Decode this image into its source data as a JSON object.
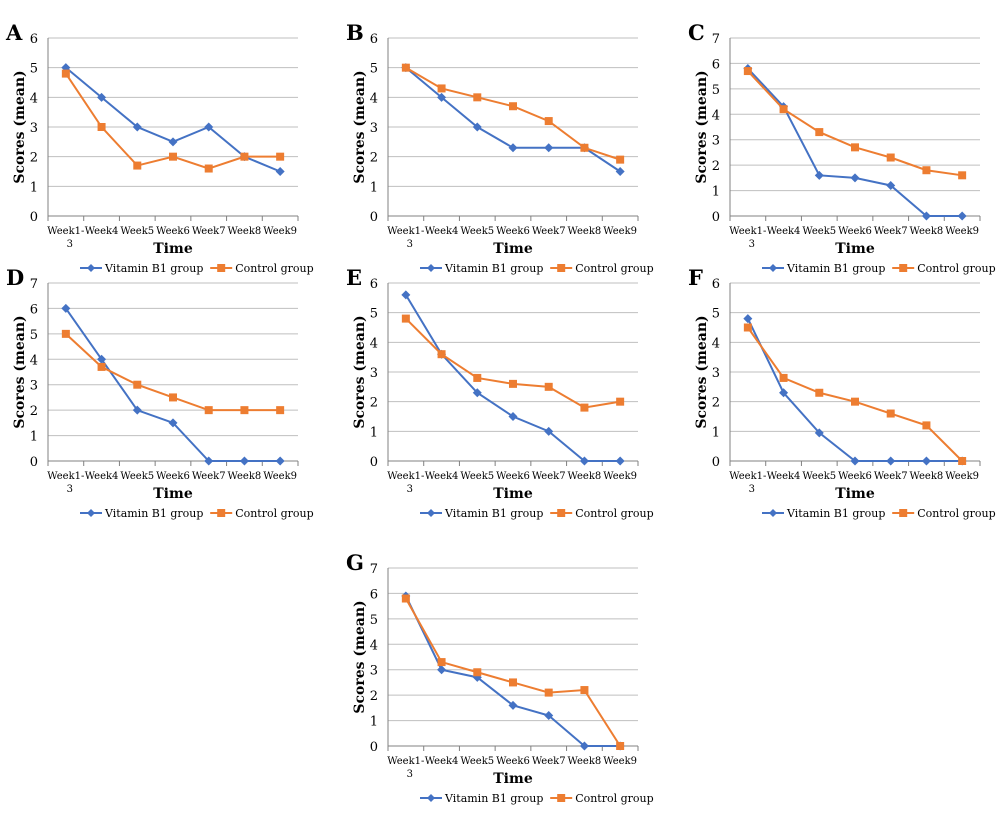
{
  "colors": {
    "vitamin": "#4472C4",
    "control": "#ED7D31",
    "grid": "#BFBFBF",
    "axis": "#808080"
  },
  "chart_data": [
    {
      "panel": "A",
      "type": "line",
      "categories": [
        "Week1-3",
        "Week4",
        "Week5",
        "Week6",
        "Week7",
        "Week8",
        "Week9"
      ],
      "xlabel": "Time",
      "ylabel": "Scores (mean)",
      "ylim": [
        0,
        6
      ],
      "yticks": [
        0,
        1,
        2,
        3,
        4,
        5,
        6
      ],
      "grid": true,
      "legend": "bottom",
      "series": [
        {
          "name": "Vitamin B1 group",
          "values": [
            5,
            4,
            3,
            2.5,
            3,
            2,
            1.5
          ]
        },
        {
          "name": "Control group",
          "values": [
            4.8,
            3,
            1.7,
            2,
            1.6,
            2,
            2
          ]
        }
      ]
    },
    {
      "panel": "B",
      "type": "line",
      "categories": [
        "Week1-3",
        "Week4",
        "Week5",
        "Week6",
        "Week7",
        "Week8",
        "Week9"
      ],
      "xlabel": "Time",
      "ylabel": "Scores (mean)",
      "ylim": [
        0,
        6
      ],
      "yticks": [
        0,
        1,
        2,
        3,
        4,
        5,
        6
      ],
      "grid": true,
      "legend": "bottom",
      "series": [
        {
          "name": "Vitamin B1 group",
          "values": [
            5,
            4,
            3,
            2.3,
            2.3,
            2.3,
            1.5
          ]
        },
        {
          "name": "Control group",
          "values": [
            5,
            4.3,
            4,
            3.7,
            3.2,
            2.3,
            1.9
          ]
        }
      ]
    },
    {
      "panel": "C",
      "type": "line",
      "categories": [
        "Week1-3",
        "Week4",
        "Week5",
        "Week6",
        "Week7",
        "Week8",
        "Week9"
      ],
      "xlabel": "Time",
      "ylabel": "Scores (mean)",
      "ylim": [
        0,
        7
      ],
      "yticks": [
        0,
        1,
        2,
        3,
        4,
        5,
        6,
        7
      ],
      "grid": true,
      "legend": "bottom",
      "series": [
        {
          "name": "Vitamin B1 group",
          "values": [
            5.8,
            4.3,
            1.6,
            1.5,
            1.2,
            0,
            0
          ]
        },
        {
          "name": "Control group",
          "values": [
            5.7,
            4.2,
            3.3,
            2.7,
            2.3,
            1.8,
            1.6
          ]
        }
      ]
    },
    {
      "panel": "D",
      "type": "line",
      "categories": [
        "Week1-3",
        "Week4",
        "Week5",
        "Week6",
        "Week7",
        "Week8",
        "Week9"
      ],
      "xlabel": "Time",
      "ylabel": "Scores (mean)",
      "ylim": [
        0,
        7
      ],
      "yticks": [
        0,
        1,
        2,
        3,
        4,
        5,
        6,
        7
      ],
      "grid": true,
      "legend": "bottom",
      "series": [
        {
          "name": "Vitamin B1 group",
          "values": [
            6,
            4,
            2,
            1.5,
            0,
            0,
            0
          ]
        },
        {
          "name": "Control group",
          "values": [
            5,
            3.7,
            3,
            2.5,
            2,
            2,
            2
          ]
        }
      ]
    },
    {
      "panel": "E",
      "type": "line",
      "categories": [
        "Week1-3",
        "Week4",
        "Week5",
        "Week6",
        "Week7",
        "Week8",
        "Week9"
      ],
      "xlabel": "Time",
      "ylabel": "Scores (mean)",
      "ylim": [
        0,
        6
      ],
      "yticks": [
        0,
        1,
        2,
        3,
        4,
        5,
        6
      ],
      "grid": true,
      "legend": "bottom",
      "series": [
        {
          "name": "Vitamin B1 group",
          "values": [
            5.6,
            3.6,
            2.3,
            1.5,
            1,
            0,
            0
          ]
        },
        {
          "name": "Control group",
          "values": [
            4.8,
            3.6,
            2.8,
            2.6,
            2.5,
            1.8,
            2
          ]
        }
      ]
    },
    {
      "panel": "F",
      "type": "line",
      "categories": [
        "Week1-3",
        "Week4",
        "Week5",
        "Week6",
        "Week7",
        "Week8",
        "Week9"
      ],
      "xlabel": "Time",
      "ylabel": "Scores (mean)",
      "ylim": [
        0,
        6
      ],
      "yticks": [
        0,
        1,
        2,
        3,
        4,
        5,
        6
      ],
      "grid": true,
      "legend": "bottom",
      "series": [
        {
          "name": "Vitamin B1 group",
          "values": [
            4.8,
            2.3,
            0.95,
            0,
            0,
            0,
            0
          ]
        },
        {
          "name": "Control group",
          "values": [
            4.5,
            2.8,
            2.3,
            2,
            1.6,
            1.2,
            0
          ]
        }
      ]
    },
    {
      "panel": "G",
      "type": "line",
      "categories": [
        "Week1-3",
        "Week4",
        "Week5",
        "Week6",
        "Week7",
        "Week8",
        "Week9"
      ],
      "xlabel": "Time",
      "ylabel": "Scores (mean)",
      "ylim": [
        0,
        7
      ],
      "yticks": [
        0,
        1,
        2,
        3,
        4,
        5,
        6,
        7
      ],
      "grid": true,
      "legend": "bottom",
      "series": [
        {
          "name": "Vitamin B1 group",
          "values": [
            5.9,
            3,
            2.7,
            1.6,
            1.2,
            0,
            0
          ]
        },
        {
          "name": "Control group",
          "values": [
            5.8,
            3.3,
            2.9,
            2.5,
            2.1,
            2.2,
            0
          ]
        }
      ]
    }
  ]
}
